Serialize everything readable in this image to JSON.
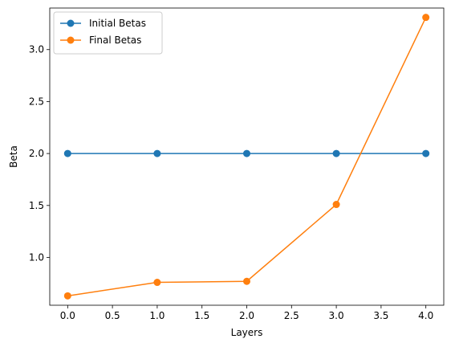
{
  "chart_data": {
    "type": "line",
    "xlabel": "Layers",
    "ylabel": "Beta",
    "xlim": [
      -0.2,
      4.2
    ],
    "ylim": [
      0.54,
      3.4
    ],
    "xticks": [
      0.0,
      0.5,
      1.0,
      1.5,
      2.0,
      2.5,
      3.0,
      3.5,
      4.0
    ],
    "xtick_labels": [
      "0.0",
      "0.5",
      "1.0",
      "1.5",
      "2.0",
      "2.5",
      "3.0",
      "3.5",
      "4.0"
    ],
    "yticks": [
      1.0,
      1.5,
      2.0,
      2.5,
      3.0
    ],
    "ytick_labels": [
      "1.0",
      "1.5",
      "2.0",
      "2.5",
      "3.0"
    ],
    "grid": false,
    "legend_position": "top-left",
    "series": [
      {
        "name": "Initial Betas",
        "color": "#1f77b4",
        "marker": "circle",
        "x": [
          0,
          1,
          2,
          3,
          4
        ],
        "y": [
          2.0,
          2.0,
          2.0,
          2.0,
          2.0
        ]
      },
      {
        "name": "Final Betas",
        "color": "#ff7f0e",
        "marker": "circle",
        "x": [
          0,
          1,
          2,
          3,
          4
        ],
        "y": [
          0.63,
          0.76,
          0.77,
          1.51,
          3.31
        ]
      }
    ]
  }
}
